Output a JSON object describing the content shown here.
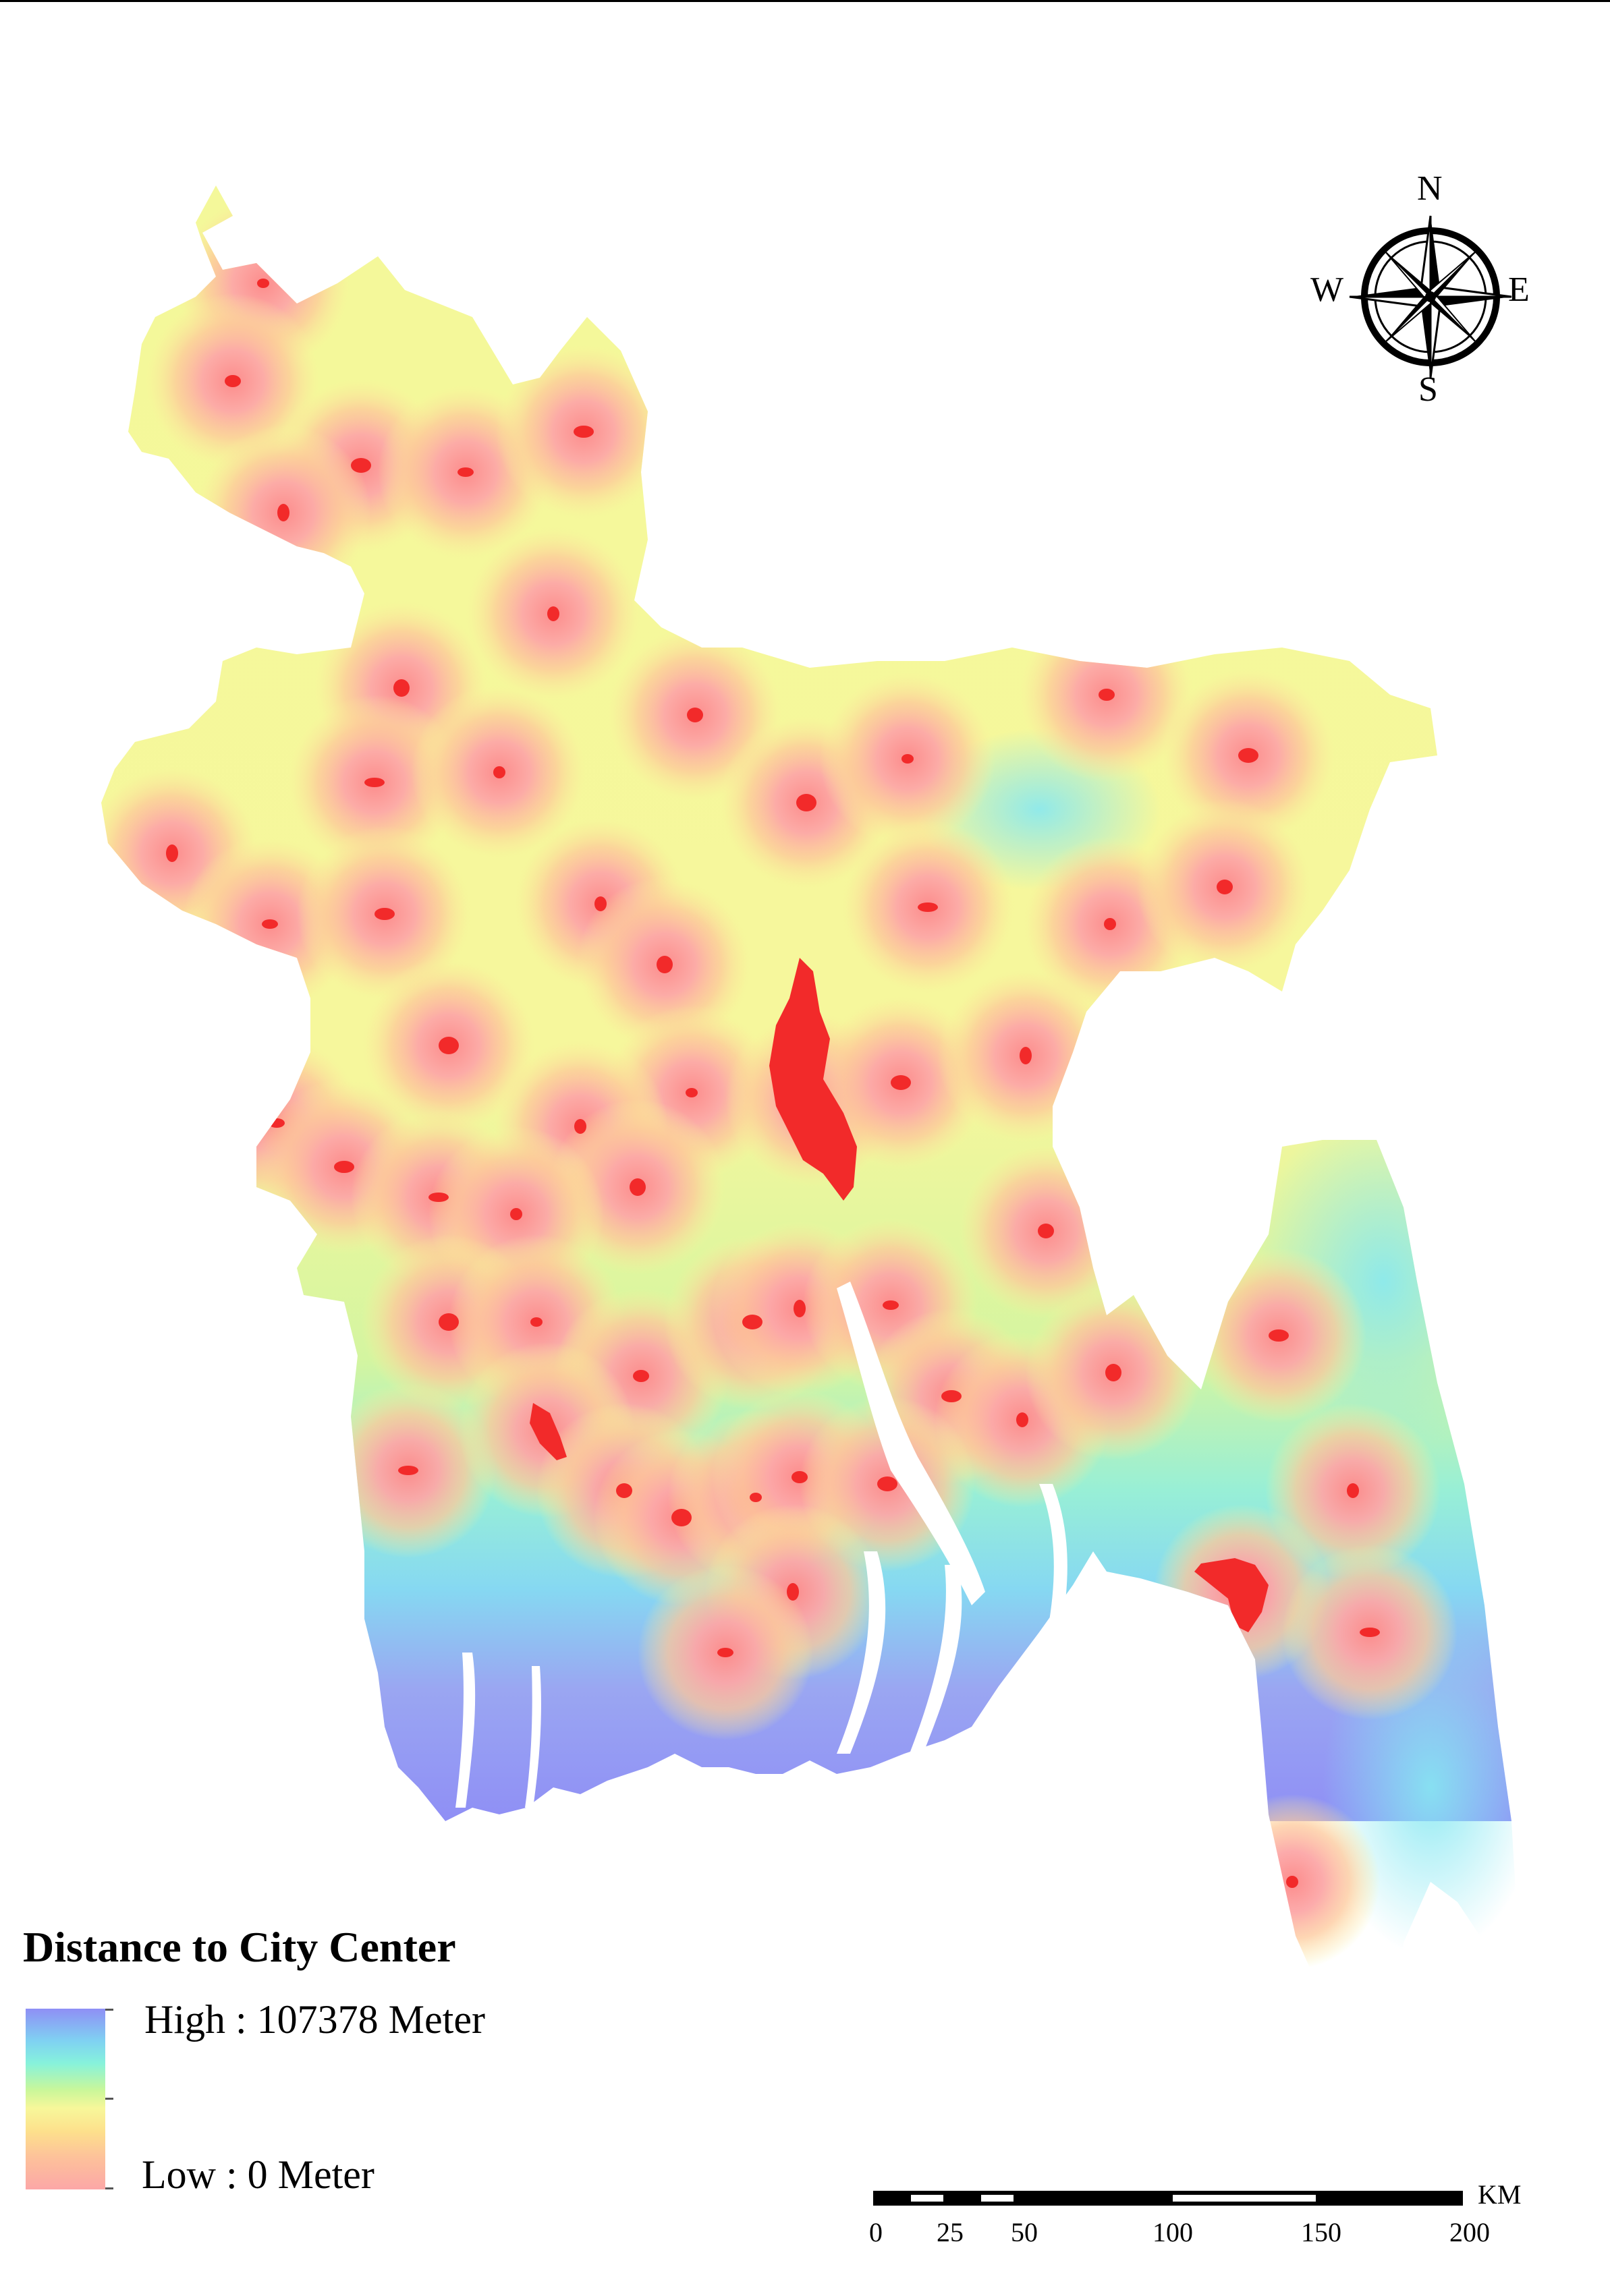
{
  "legend": {
    "title": "Distance to City Center",
    "high_label": "High : 107378 Meter",
    "low_label": "Low : 0 Meter"
  },
  "compass": {
    "north": "N",
    "south": "S",
    "east": "E",
    "west": "W"
  },
  "scale_bar": {
    "unit": "KM",
    "ticks": [
      "0",
      "25",
      "50",
      "100",
      "150",
      "200"
    ]
  },
  "colors": {
    "city_core": "#f22a2a",
    "low": "#fca7a7",
    "mid": "#f7f79a",
    "high": "#8f8ff5"
  }
}
